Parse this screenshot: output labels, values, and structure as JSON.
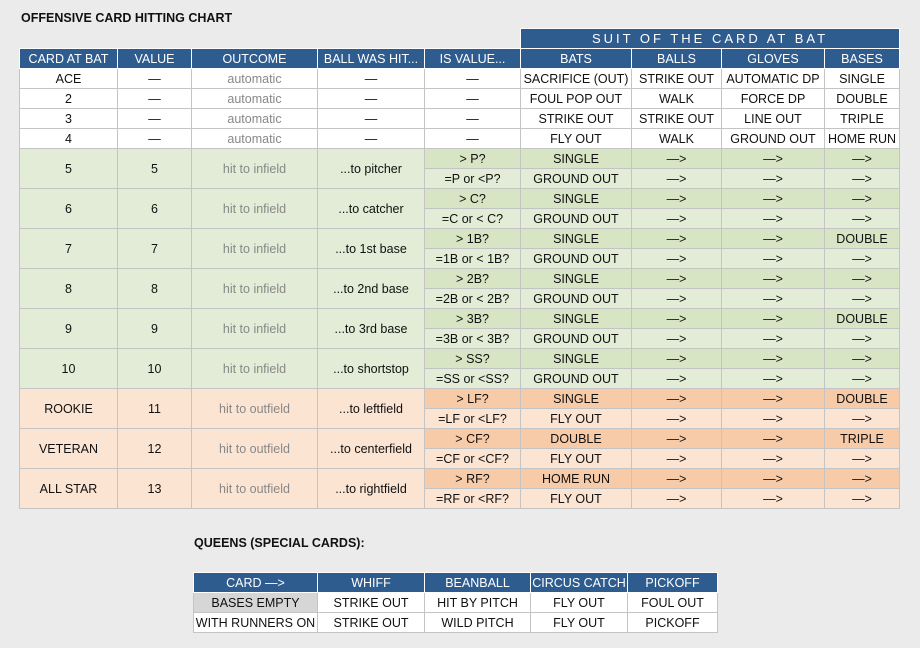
{
  "title": "OFFENSIVE CARD HITTING CHART",
  "suit_header": "SUIT OF THE CARD AT BAT",
  "columns": [
    "CARD AT BAT",
    "VALUE",
    "OUTCOME",
    "BALL WAS HIT...",
    "IS VALUE...",
    "BATS",
    "BALLS",
    "GLOVES",
    "BASES"
  ],
  "simple_rows": [
    {
      "card": "ACE",
      "value": "—",
      "outcome": "automatic",
      "hit": "—",
      "isval": "—",
      "bats": "SACRIFICE (OUT)",
      "balls": "STRIKE OUT",
      "gloves": "AUTOMATIC DP",
      "bases": "SINGLE"
    },
    {
      "card": "2",
      "value": "—",
      "outcome": "automatic",
      "hit": "—",
      "isval": "—",
      "bats": "FOUL POP OUT",
      "balls": "WALK",
      "gloves": "FORCE DP",
      "bases": "DOUBLE"
    },
    {
      "card": "3",
      "value": "—",
      "outcome": "automatic",
      "hit": "—",
      "isval": "—",
      "bats": "STRIKE OUT",
      "balls": "STRIKE OUT",
      "gloves": "LINE OUT",
      "bases": "TRIPLE"
    },
    {
      "card": "4",
      "value": "—",
      "outcome": "automatic",
      "hit": "—",
      "isval": "—",
      "bats": "FLY OUT",
      "balls": "WALK",
      "gloves": "GROUND OUT",
      "bases": "HOME RUN"
    }
  ],
  "group_rows": [
    {
      "card": "5",
      "value": "5",
      "outcome": "hit to infield",
      "hit": "...to pitcher",
      "color": "green",
      "sub": [
        {
          "isval": "> P?",
          "bats": "SINGLE",
          "balls": "—>",
          "gloves": "—>",
          "bases": "—>"
        },
        {
          "isval": "=P or <P?",
          "bats": "GROUND OUT",
          "balls": "—>",
          "gloves": "—>",
          "bases": "—>"
        }
      ]
    },
    {
      "card": "6",
      "value": "6",
      "outcome": "hit to infield",
      "hit": "...to catcher",
      "color": "green",
      "sub": [
        {
          "isval": "> C?",
          "bats": "SINGLE",
          "balls": "—>",
          "gloves": "—>",
          "bases": "—>"
        },
        {
          "isval": "=C or < C?",
          "bats": "GROUND OUT",
          "balls": "—>",
          "gloves": "—>",
          "bases": "—>"
        }
      ]
    },
    {
      "card": "7",
      "value": "7",
      "outcome": "hit to infield",
      "hit": "...to 1st base",
      "color": "green",
      "sub": [
        {
          "isval": "> 1B?",
          "bats": "SINGLE",
          "balls": "—>",
          "gloves": "—>",
          "bases": "DOUBLE"
        },
        {
          "isval": "=1B or < 1B?",
          "bats": "GROUND OUT",
          "balls": "—>",
          "gloves": "—>",
          "bases": "—>"
        }
      ]
    },
    {
      "card": "8",
      "value": "8",
      "outcome": "hit to infield",
      "hit": "...to 2nd base",
      "color": "green",
      "sub": [
        {
          "isval": "> 2B?",
          "bats": "SINGLE",
          "balls": "—>",
          "gloves": "—>",
          "bases": "—>"
        },
        {
          "isval": "=2B or < 2B?",
          "bats": "GROUND OUT",
          "balls": "—>",
          "gloves": "—>",
          "bases": "—>"
        }
      ]
    },
    {
      "card": "9",
      "value": "9",
      "outcome": "hit to infield",
      "hit": "...to 3rd base",
      "color": "green",
      "sub": [
        {
          "isval": "> 3B?",
          "bats": "SINGLE",
          "balls": "—>",
          "gloves": "—>",
          "bases": "DOUBLE"
        },
        {
          "isval": "=3B or < 3B?",
          "bats": "GROUND OUT",
          "balls": "—>",
          "gloves": "—>",
          "bases": "—>"
        }
      ]
    },
    {
      "card": "10",
      "value": "10",
      "outcome": "hit to infield",
      "hit": "...to shortstop",
      "color": "green",
      "sub": [
        {
          "isval": "> SS?",
          "bats": "SINGLE",
          "balls": "—>",
          "gloves": "—>",
          "bases": "—>"
        },
        {
          "isval": "=SS or <SS?",
          "bats": "GROUND OUT",
          "balls": "—>",
          "gloves": "—>",
          "bases": "—>"
        }
      ]
    },
    {
      "card": "ROOKIE",
      "value": "11",
      "outcome": "hit to outfield",
      "hit": "...to leftfield",
      "color": "orange",
      "sub": [
        {
          "isval": "> LF?",
          "bats": "SINGLE",
          "balls": "—>",
          "gloves": "—>",
          "bases": "DOUBLE"
        },
        {
          "isval": "=LF or <LF?",
          "bats": "FLY OUT",
          "balls": "—>",
          "gloves": "—>",
          "bases": "—>"
        }
      ]
    },
    {
      "card": "VETERAN",
      "value": "12",
      "outcome": "hit to outfield",
      "hit": "...to centerfield",
      "color": "orange",
      "sub": [
        {
          "isval": "> CF?",
          "bats": "DOUBLE",
          "balls": "—>",
          "gloves": "—>",
          "bases": "TRIPLE"
        },
        {
          "isval": "=CF or <CF?",
          "bats": "FLY OUT",
          "balls": "—>",
          "gloves": "—>",
          "bases": "—>"
        }
      ]
    },
    {
      "card": "ALL STAR",
      "value": "13",
      "outcome": "hit to outfield",
      "hit": "...to rightfield",
      "color": "orange",
      "sub": [
        {
          "isval": "> RF?",
          "bats": "HOME RUN",
          "balls": "—>",
          "gloves": "—>",
          "bases": "—>"
        },
        {
          "isval": "=RF or <RF?",
          "bats": "FLY OUT",
          "balls": "—>",
          "gloves": "—>",
          "bases": "—>"
        }
      ]
    }
  ],
  "queens": {
    "title": "QUEENS (SPECIAL CARDS):",
    "headers": [
      "CARD —>",
      "WHIFF",
      "BEANBALL",
      "CIRCUS CATCH",
      "PICKOFF"
    ],
    "rows": [
      [
        "BASES EMPTY",
        "STRIKE OUT",
        "HIT BY PITCH",
        "FLY OUT",
        "FOUL OUT"
      ],
      [
        "WITH RUNNERS ON",
        "STRIKE OUT",
        "WILD PITCH",
        "FLY OUT",
        "PICKOFF"
      ]
    ]
  }
}
